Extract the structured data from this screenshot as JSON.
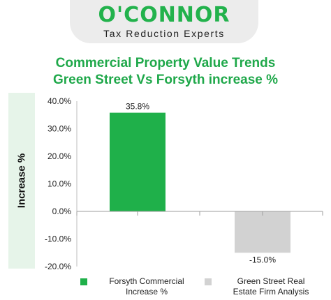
{
  "brand": {
    "logo": "O'CONNOR",
    "tagline": "Tax Reduction Experts",
    "color": "#22b24c"
  },
  "chart_data": {
    "type": "bar",
    "title": "Commercial Property Value Trends",
    "subtitle": "Green Street Vs Forsyth increase %",
    "ylabel": "Increase %",
    "xlabel": "",
    "ylim": [
      -20,
      40
    ],
    "yticks": [
      "40.0%",
      "30.0%",
      "20.0%",
      "10.0%",
      "0.0%",
      "-10.0%",
      "-20.0%"
    ],
    "ytick_values": [
      40,
      30,
      20,
      10,
      0,
      -10,
      -20
    ],
    "grid": false,
    "legend_position": "bottom",
    "categories": [
      "Forsyth Commercial Increase %",
      "Green Street Real Estate Firm Analysis"
    ],
    "values": [
      35.8,
      -15.0
    ],
    "data_labels": [
      "35.8%",
      "-15.0%"
    ],
    "colors": [
      "#1fb04a",
      "#d2d2d2"
    ],
    "title_color": "#1fa84a"
  },
  "legend": [
    {
      "label_line1": "Forsyth Commercial",
      "label_line2": "Increase %",
      "color": "#1fb04a"
    },
    {
      "label_line1": "Green Street Real",
      "label_line2": "Estate Firm Analysis",
      "color": "#d2d2d2"
    }
  ]
}
